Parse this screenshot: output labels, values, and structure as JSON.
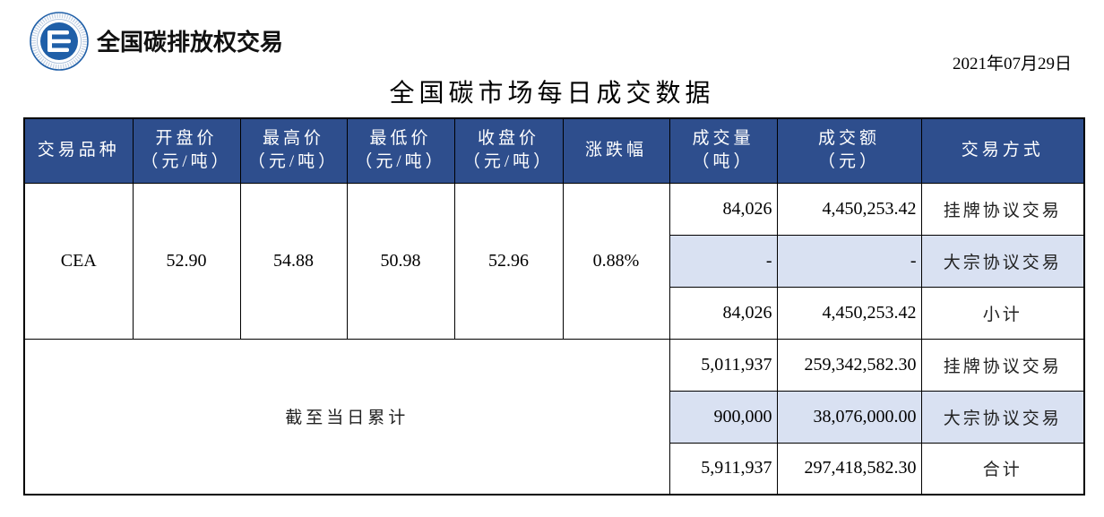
{
  "logo": {
    "icon": "carbon-exchange-emblem-icon",
    "org_name": "全国碳排放权交易"
  },
  "report": {
    "date": "2021年07月29日",
    "title": "全国碳市场每日成交数据"
  },
  "colors": {
    "header_bg": "#2E4E8D",
    "header_text": "#FFFFFF",
    "highlight_bg": "#D9E1F2",
    "logo_blue": "#1F5FA8"
  },
  "table": {
    "columns": [
      {
        "label": "交易品种"
      },
      {
        "label": "开盘价",
        "unit": "（元/吨）"
      },
      {
        "label": "最高价",
        "unit": "（元/吨）"
      },
      {
        "label": "最低价",
        "unit": "（元/吨）"
      },
      {
        "label": "收盘价",
        "unit": "（元/吨）"
      },
      {
        "label": "涨跌幅"
      },
      {
        "label": "成交量",
        "unit": "（吨）"
      },
      {
        "label": "成交额",
        "unit": "（元）"
      },
      {
        "label": "交易方式"
      }
    ],
    "daily": {
      "product": "CEA",
      "open": "52.90",
      "high": "54.88",
      "low": "50.98",
      "close": "52.96",
      "change": "0.88%",
      "rows": [
        {
          "volume": "84,026",
          "amount": "4,450,253.42",
          "method": "挂牌协议交易"
        },
        {
          "volume": "-",
          "amount": "-",
          "method": "大宗协议交易"
        },
        {
          "volume": "84,026",
          "amount": "4,450,253.42",
          "method": "小计"
        }
      ]
    },
    "cumulative": {
      "label": "截至当日累计",
      "rows": [
        {
          "volume": "5,011,937",
          "amount": "259,342,582.30",
          "method": "挂牌协议交易"
        },
        {
          "volume": "900,000",
          "amount": "38,076,000.00",
          "method": "大宗协议交易"
        },
        {
          "volume": "5,911,937",
          "amount": "297,418,582.30",
          "method": "合计"
        }
      ]
    }
  }
}
